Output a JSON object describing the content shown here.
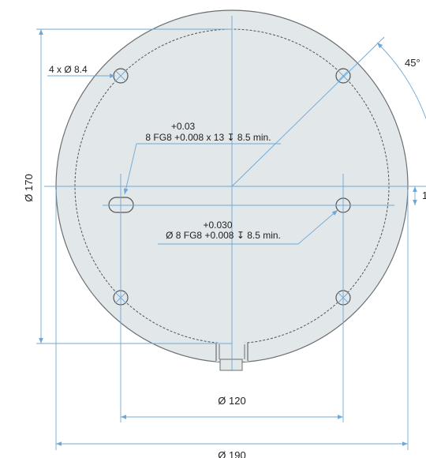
{
  "drawing": {
    "callouts": {
      "hole_pattern": "4 x Ø 8.4",
      "angle": "45°",
      "offset_partial": "1",
      "height_dia": "Ø 170",
      "pitch_dia": "Ø 120",
      "outer_dia": "Ø 190"
    },
    "slot_note": {
      "tolerance": "+0.03",
      "spec": "8 FG8 +0.008 x 13 ↧ 8.5 min."
    },
    "hole_note": {
      "tolerance": "+0.030",
      "spec": "Ø 8 FG8 +0.008 ↧ 8.5 min."
    },
    "colors": {
      "part_fill": "#e2e7ea",
      "part_stroke": "#6b6f72",
      "dimension_line": "#6fa8d6",
      "text": "#222222"
    }
  }
}
